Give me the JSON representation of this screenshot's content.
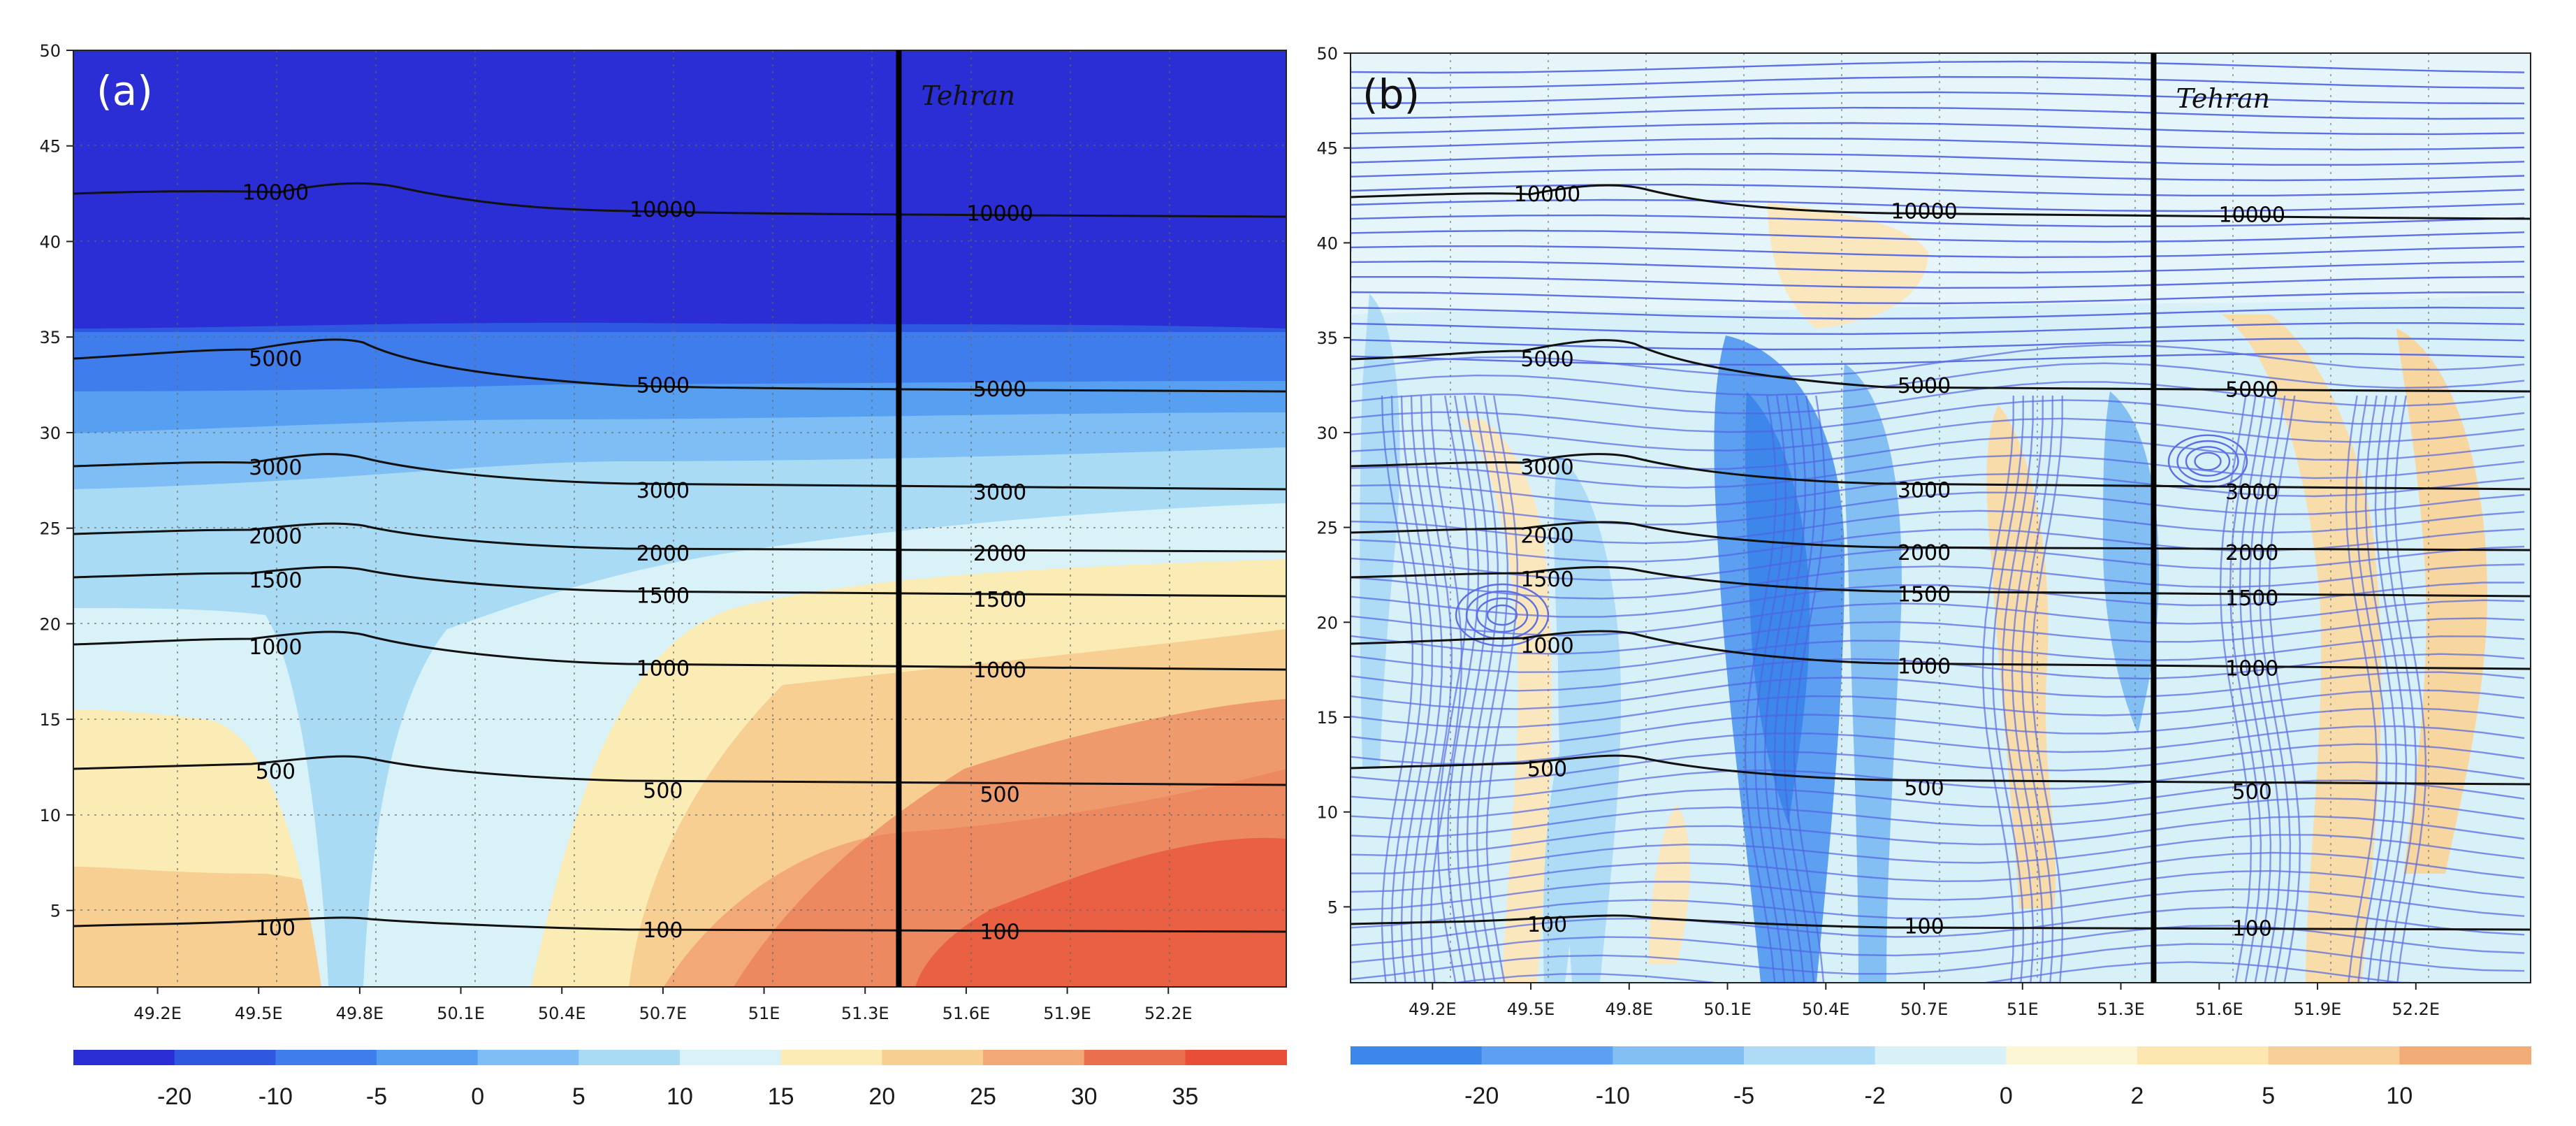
{
  "figure": {
    "panels": [
      "(a)",
      "(b)"
    ],
    "city_label": "Tehran"
  },
  "chart_data": [
    {
      "type": "heatmap",
      "panel_label": "(a)",
      "description_label": "filled contours with height contour lines",
      "x_ticks": [
        "49.2E",
        "49.5E",
        "49.8E",
        "50.1E",
        "50.4E",
        "50.7E",
        "51E",
        "51.3E",
        "51.6E",
        "51.9E",
        "52.2E"
      ],
      "x_tick_values": [
        49.2,
        49.5,
        49.8,
        50.1,
        50.4,
        50.7,
        51.0,
        51.3,
        51.6,
        51.9,
        52.2
      ],
      "xlim": [
        48.95,
        52.55
      ],
      "y_ticks": [
        5,
        10,
        15,
        20,
        25,
        30,
        35,
        40,
        45,
        50
      ],
      "ylim": [
        1,
        50
      ],
      "colorbar_ticks": [
        "-20",
        "-10",
        "-5",
        "0",
        "5",
        "10",
        "15",
        "20",
        "25",
        "30",
        "35"
      ],
      "colorbar_colors": [
        "#2a2ed4",
        "#2f58e0",
        "#3f7ded",
        "#57a0f1",
        "#7fbef4",
        "#a9dcf4",
        "#d9f2f7",
        "#fbecb5",
        "#f7cf93",
        "#f2a877",
        "#e96f4e",
        "#e94f36"
      ],
      "levels": [
        100,
        500,
        1000,
        1500,
        2000,
        3000,
        5000,
        10000
      ],
      "vertical_line_x": 51.4,
      "city": "Tehran",
      "contour_labels": [
        {
          "text": "10000",
          "x": 49.55,
          "y": 42.6
        },
        {
          "text": "10000",
          "x": 50.7,
          "y": 41.7
        },
        {
          "text": "10000",
          "x": 51.7,
          "y": 41.5
        },
        {
          "text": "5000",
          "x": 49.55,
          "y": 33.9
        },
        {
          "text": "5000",
          "x": 50.7,
          "y": 32.5
        },
        {
          "text": "5000",
          "x": 51.7,
          "y": 32.3
        },
        {
          "text": "3000",
          "x": 49.55,
          "y": 28.2
        },
        {
          "text": "3000",
          "x": 50.7,
          "y": 27.0
        },
        {
          "text": "3000",
          "x": 51.7,
          "y": 26.9
        },
        {
          "text": "2000",
          "x": 49.55,
          "y": 24.6
        },
        {
          "text": "2000",
          "x": 50.7,
          "y": 23.7
        },
        {
          "text": "2000",
          "x": 51.7,
          "y": 23.7
        },
        {
          "text": "1500",
          "x": 49.55,
          "y": 22.3
        },
        {
          "text": "1500",
          "x": 50.7,
          "y": 21.5
        },
        {
          "text": "1500",
          "x": 51.7,
          "y": 21.3
        },
        {
          "text": "1000",
          "x": 49.55,
          "y": 18.8
        },
        {
          "text": "1000",
          "x": 50.7,
          "y": 17.7
        },
        {
          "text": "1000",
          "x": 51.7,
          "y": 17.6
        },
        {
          "text": "500",
          "x": 49.55,
          "y": 12.3
        },
        {
          "text": "500",
          "x": 50.7,
          "y": 11.3
        },
        {
          "text": "500",
          "x": 51.7,
          "y": 11.1
        },
        {
          "text": "100",
          "x": 49.55,
          "y": 4.1
        },
        {
          "text": "100",
          "x": 50.7,
          "y": 4.0
        },
        {
          "text": "100",
          "x": 51.7,
          "y": 3.9
        }
      ]
    },
    {
      "type": "heatmap",
      "panel_label": "(b)",
      "description_label": "filled anomaly with streamlines and height contour lines",
      "x_ticks": [
        "49.2E",
        "49.5E",
        "49.8E",
        "50.1E",
        "50.4E",
        "50.7E",
        "51E",
        "51.3E",
        "51.6E",
        "51.9E",
        "52.2E"
      ],
      "x_tick_values": [
        49.2,
        49.5,
        49.8,
        50.1,
        50.4,
        50.7,
        51.0,
        51.3,
        51.6,
        51.9,
        52.2
      ],
      "xlim": [
        48.95,
        52.55
      ],
      "y_ticks": [
        5,
        10,
        15,
        20,
        25,
        30,
        35,
        40,
        45,
        50
      ],
      "ylim": [
        1,
        50
      ],
      "colorbar_ticks": [
        "-20",
        "-10",
        "-5",
        "-2",
        "0",
        "2",
        "5",
        "10"
      ],
      "colorbar_colors": [
        "#3d86ea",
        "#5d9ff0",
        "#84bff4",
        "#aedcf6",
        "#d8f0f7",
        "#fdf6d4",
        "#fde7b0",
        "#f8cf98",
        "#f2ac78"
      ],
      "levels": [
        100,
        500,
        1000,
        1500,
        2000,
        3000,
        5000,
        10000
      ],
      "vertical_line_x": 51.4,
      "city": "Tehran",
      "contour_labels": [
        {
          "text": "10000",
          "x": 49.55,
          "y": 42.6
        },
        {
          "text": "10000",
          "x": 50.7,
          "y": 41.7
        },
        {
          "text": "10000",
          "x": 51.7,
          "y": 41.5
        },
        {
          "text": "5000",
          "x": 49.55,
          "y": 33.9
        },
        {
          "text": "5000",
          "x": 50.7,
          "y": 32.5
        },
        {
          "text": "5000",
          "x": 51.7,
          "y": 32.3
        },
        {
          "text": "3000",
          "x": 49.55,
          "y": 28.2
        },
        {
          "text": "3000",
          "x": 50.7,
          "y": 27.0
        },
        {
          "text": "3000",
          "x": 51.7,
          "y": 26.9
        },
        {
          "text": "2000",
          "x": 49.55,
          "y": 24.6
        },
        {
          "text": "2000",
          "x": 50.7,
          "y": 23.7
        },
        {
          "text": "2000",
          "x": 51.7,
          "y": 23.7
        },
        {
          "text": "1500",
          "x": 49.55,
          "y": 22.3
        },
        {
          "text": "1500",
          "x": 50.7,
          "y": 21.5
        },
        {
          "text": "1500",
          "x": 51.7,
          "y": 21.3
        },
        {
          "text": "1000",
          "x": 49.55,
          "y": 18.8
        },
        {
          "text": "1000",
          "x": 50.7,
          "y": 17.7
        },
        {
          "text": "1000",
          "x": 51.7,
          "y": 17.6
        },
        {
          "text": "500",
          "x": 49.55,
          "y": 12.3
        },
        {
          "text": "500",
          "x": 50.7,
          "y": 11.3
        },
        {
          "text": "500",
          "x": 51.7,
          "y": 11.1
        },
        {
          "text": "100",
          "x": 49.55,
          "y": 4.1
        },
        {
          "text": "100",
          "x": 50.7,
          "y": 4.0
        },
        {
          "text": "100",
          "x": 51.7,
          "y": 3.9
        }
      ]
    }
  ]
}
